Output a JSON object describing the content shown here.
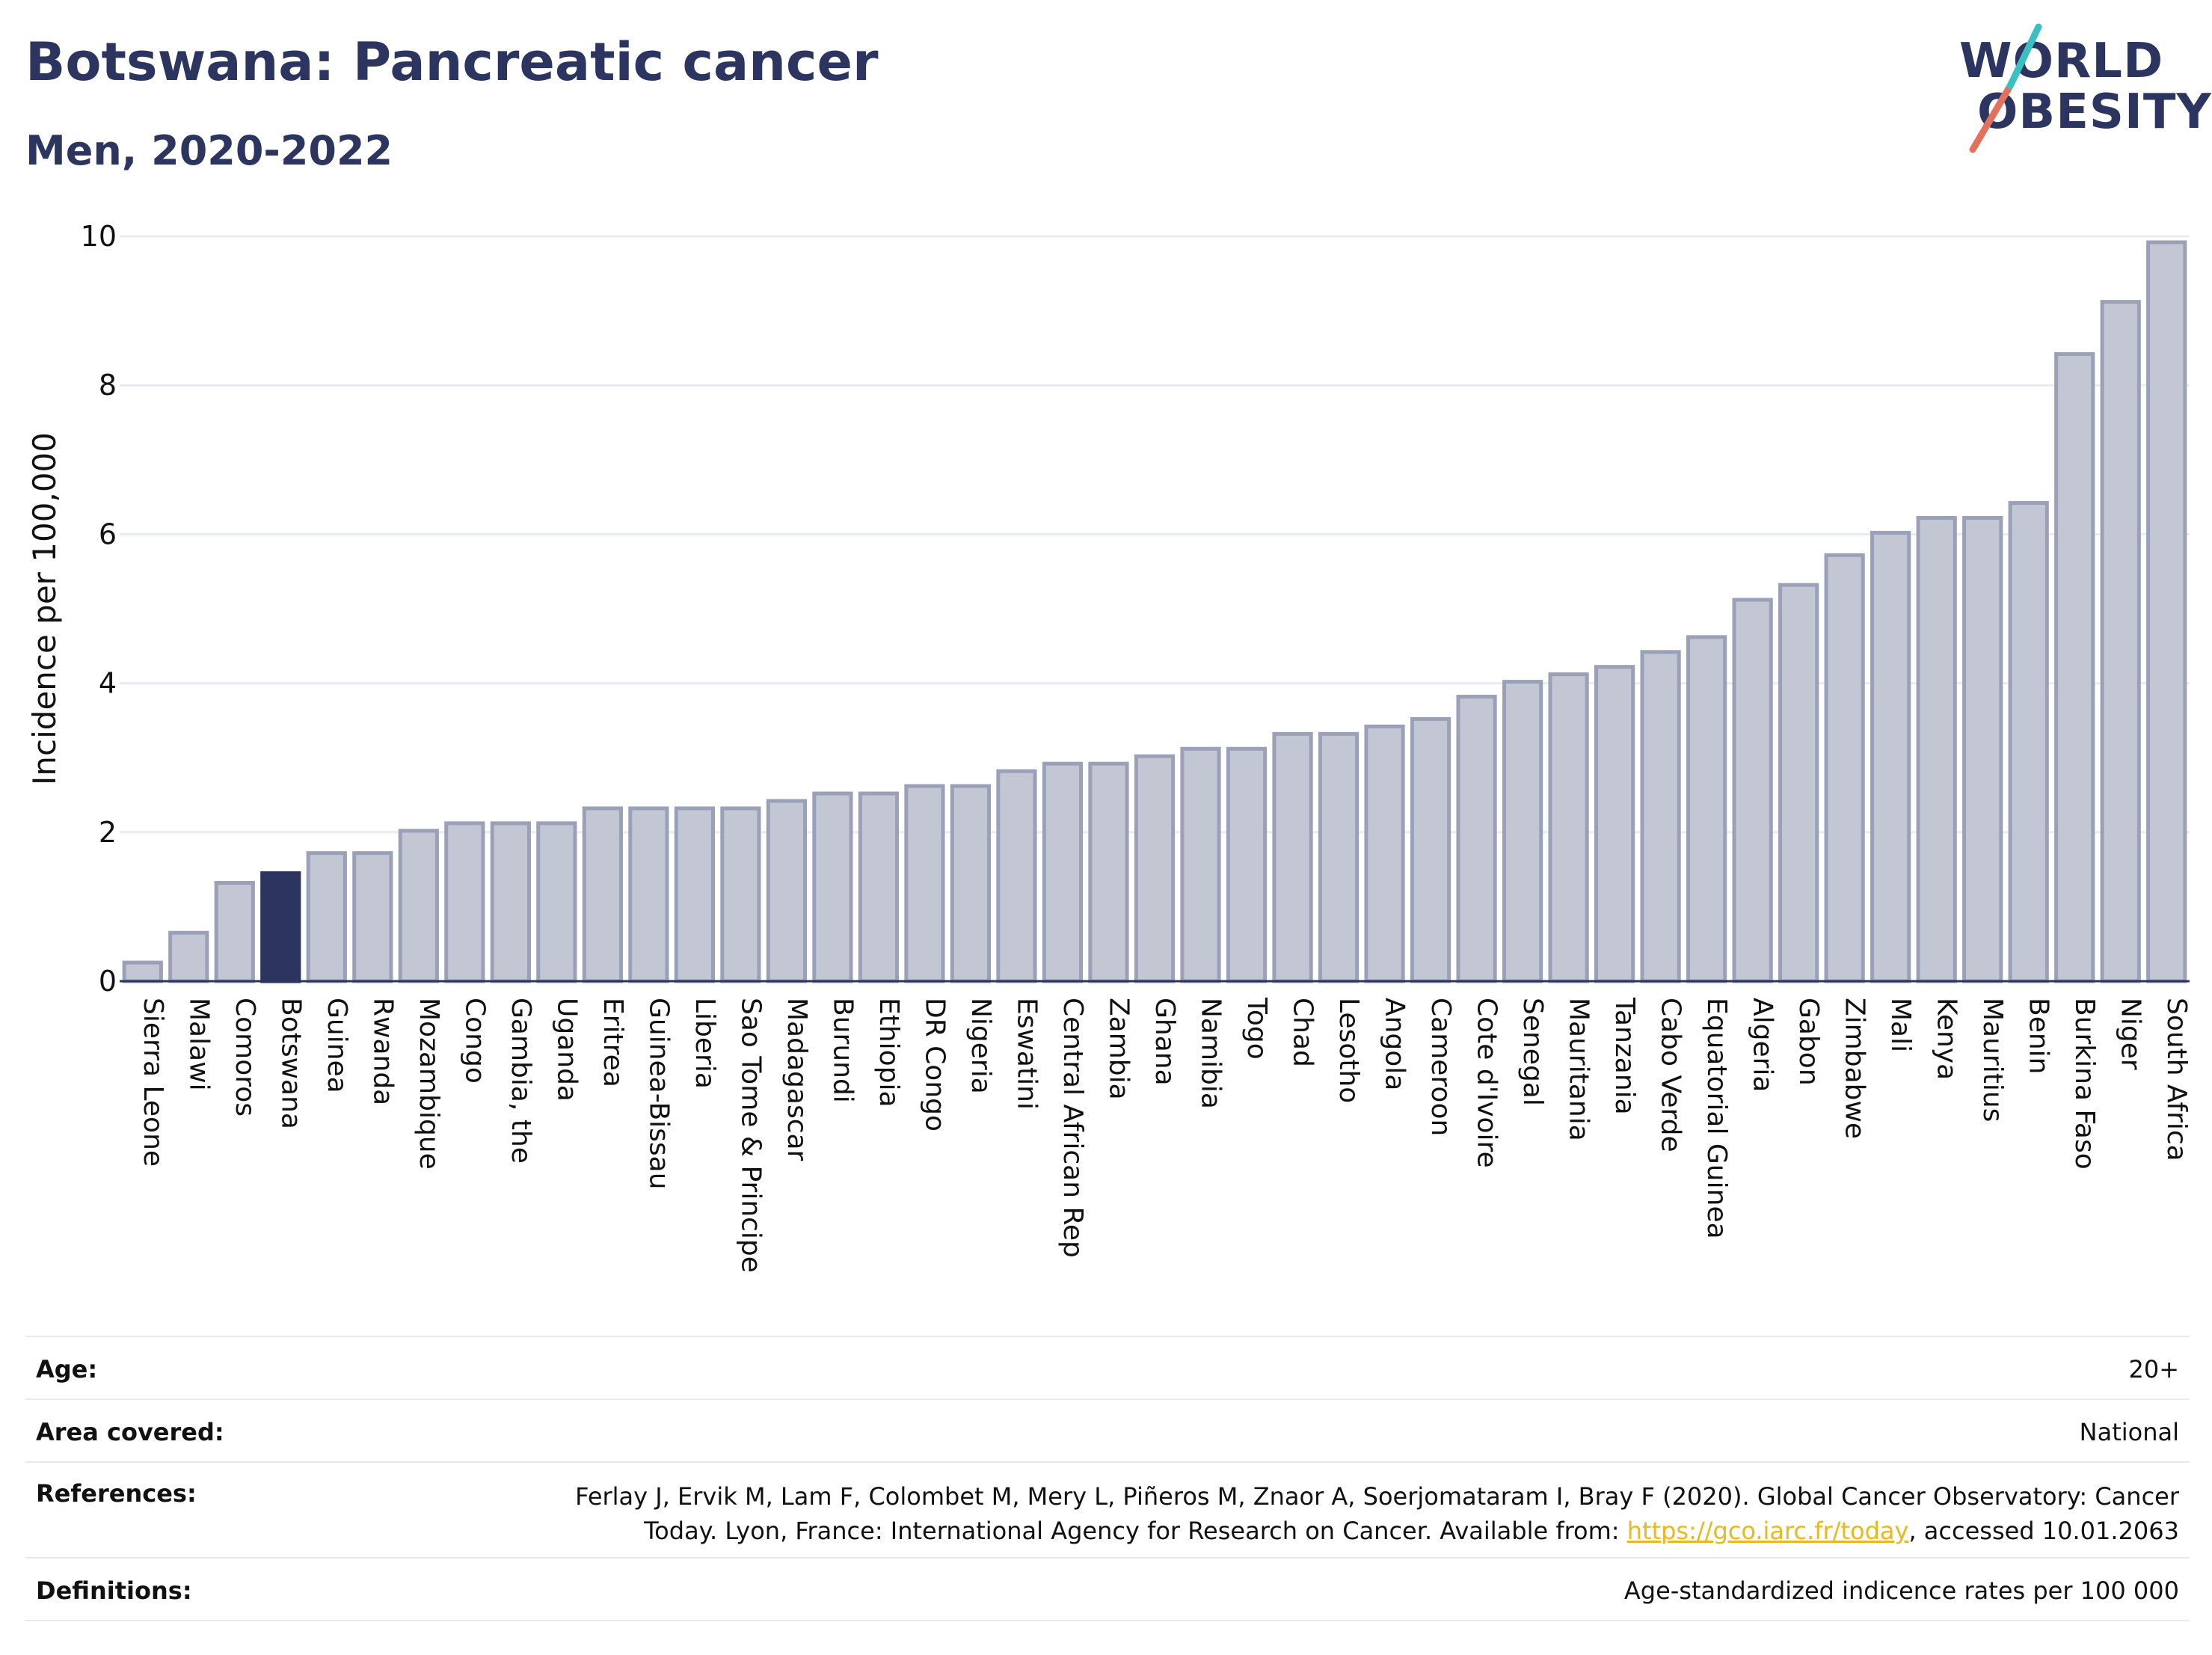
{
  "header": {
    "title": "Botswana: Pancreatic cancer",
    "subtitle": "Men, 2020-2022"
  },
  "logo": {
    "line1": "WORLD",
    "line2": "OBESITY",
    "slash_colors": [
      "#e2725b",
      "#3bbfc0"
    ]
  },
  "chart_data": {
    "type": "bar",
    "ylabel": "Incidence per 100,000",
    "ylim": [
      0,
      10
    ],
    "yticks": [
      "0",
      "2",
      "4",
      "6",
      "8",
      "10"
    ],
    "highlight": "Botswana",
    "colors": {
      "bar": "#c3c7d4",
      "bar_border": "#9aa0b8",
      "highlight": "#2b3560",
      "grid": "#e8ecf0",
      "axis": "#2b3560"
    },
    "categories": [
      "Sierra Leone",
      "Malawi",
      "Comoros",
      "Botswana",
      "Guinea",
      "Rwanda",
      "Mozambique",
      "Congo",
      "Gambia, the",
      "Uganda",
      "Eritrea",
      "Guinea-Bissau",
      "Liberia",
      "Sao Tome & Principe",
      "Madagascar",
      "Burundi",
      "Ethiopia",
      "DR Congo",
      "Nigeria",
      "Eswatini",
      "Central African Rep",
      "Zambia",
      "Ghana",
      "Namibia",
      "Togo",
      "Chad",
      "Lesotho",
      "Angola",
      "Cameroon",
      "Cote d'Ivoire",
      "Senegal",
      "Mauritania",
      "Tanzania",
      "Cabo Verde",
      "Equatorial Guinea",
      "Algeria",
      "Gabon",
      "Zimbabwe",
      "Mali",
      "Kenya",
      "Mauritius",
      "Benin",
      "Burkina Faso",
      "Niger",
      "South Africa"
    ],
    "values": [
      0.25,
      0.65,
      1.32,
      1.45,
      1.72,
      1.72,
      2.02,
      2.12,
      2.12,
      2.12,
      2.32,
      2.32,
      2.32,
      2.32,
      2.42,
      2.52,
      2.52,
      2.62,
      2.62,
      2.82,
      2.92,
      2.92,
      3.02,
      3.12,
      3.12,
      3.32,
      3.32,
      3.42,
      3.52,
      3.82,
      4.02,
      4.12,
      4.22,
      4.42,
      4.62,
      5.12,
      5.32,
      5.72,
      6.02,
      6.22,
      6.22,
      6.42,
      8.42,
      9.12,
      9.92
    ]
  },
  "info": {
    "age_label": "Age:",
    "age_value": "20+",
    "area_label": "Area covered:",
    "area_value": "National",
    "refs_label": "References:",
    "refs_line1": "Ferlay J, Ervik M, Lam F, Colombet M, Mery L, Piñeros M, Znaor A, Soerjomataram I, Bray F (2020). Global Cancer Observatory: Cancer",
    "refs_line2_pre": "Today. Lyon, France: International Agency for Research on Cancer. Available from: ",
    "refs_link": "https://gco.iarc.fr/today",
    "refs_line2_post": ", accessed 10.01.2063",
    "defs_label": "Definitions:",
    "defs_value": "Age-standardized indicence rates per 100 000"
  }
}
